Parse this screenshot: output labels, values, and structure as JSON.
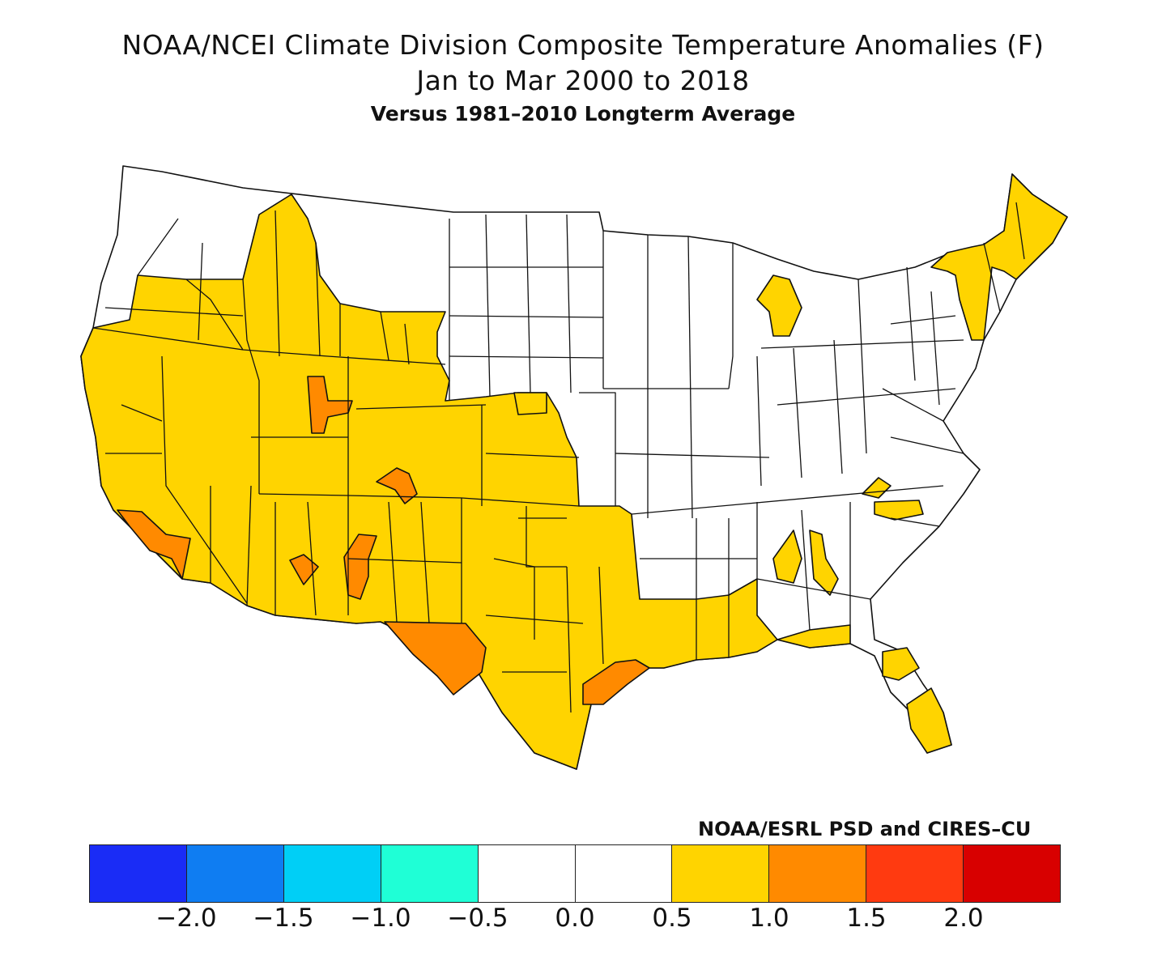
{
  "title": "NOAA/NCEI Climate Division Composite Temperature Anomalies (F)",
  "subtitle": "Jan to Mar 2000 to 2018",
  "subtitle2": "Versus 1981–2010 Longterm Average",
  "credit": "NOAA/ESRL PSD and CIRES–CU",
  "legend": {
    "colors": [
      "#1a2cf6",
      "#0f7df2",
      "#00cff6",
      "#1fffd6",
      "#ffffff",
      "#ffffff",
      "#ffd400",
      "#ff8a00",
      "#ff3a10",
      "#d80000"
    ],
    "ticks": [
      "−2.0",
      "−1.5",
      "−1.0",
      "−0.5",
      "0.0",
      "0.5",
      "1.0",
      "1.5",
      "2.0"
    ]
  },
  "map": {
    "region": "Contiguous United States climate divisions",
    "categories": [
      {
        "label": "below 0.5",
        "color": "#ffffff"
      },
      {
        "label": "0.5 to 1.0",
        "color": "#ffd400"
      },
      {
        "label": "1.0 to 1.5",
        "color": "#ff8a00"
      }
    ]
  }
}
